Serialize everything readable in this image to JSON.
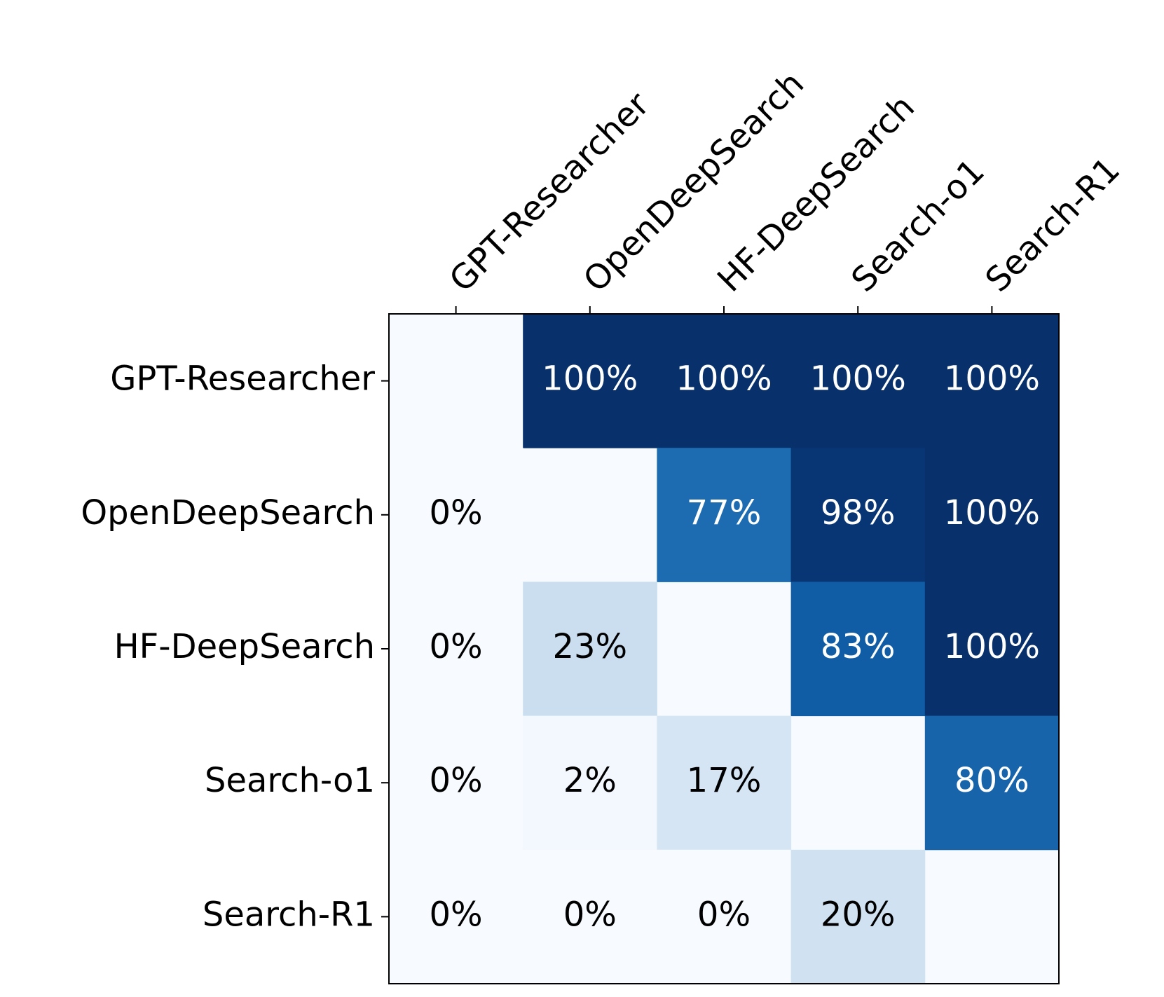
{
  "chart_data": {
    "type": "heatmap",
    "x_categories": [
      "GPT-Researcher",
      "OpenDeepSearch",
      "HF-DeepSearch",
      "Search-o1",
      "Search-R1"
    ],
    "y_categories": [
      "GPT-Researcher",
      "OpenDeepSearch",
      "HF-DeepSearch",
      "Search-o1",
      "Search-R1"
    ],
    "values": [
      [
        null,
        100,
        100,
        100,
        100
      ],
      [
        0,
        null,
        77,
        98,
        100
      ],
      [
        0,
        23,
        null,
        83,
        100
      ],
      [
        0,
        2,
        17,
        null,
        80
      ],
      [
        0,
        0,
        0,
        20,
        null
      ]
    ],
    "value_labels": [
      [
        null,
        "100%",
        "100%",
        "100%",
        "100%"
      ],
      [
        "0%",
        null,
        "77%",
        "98%",
        "100%"
      ],
      [
        "0%",
        "23%",
        null,
        "83%",
        "100%"
      ],
      [
        "0%",
        "2%",
        "17%",
        null,
        "80%"
      ],
      [
        "0%",
        "0%",
        "0%",
        "20%",
        null
      ]
    ],
    "colormap": "Blues",
    "clim": [
      0,
      100
    ]
  }
}
